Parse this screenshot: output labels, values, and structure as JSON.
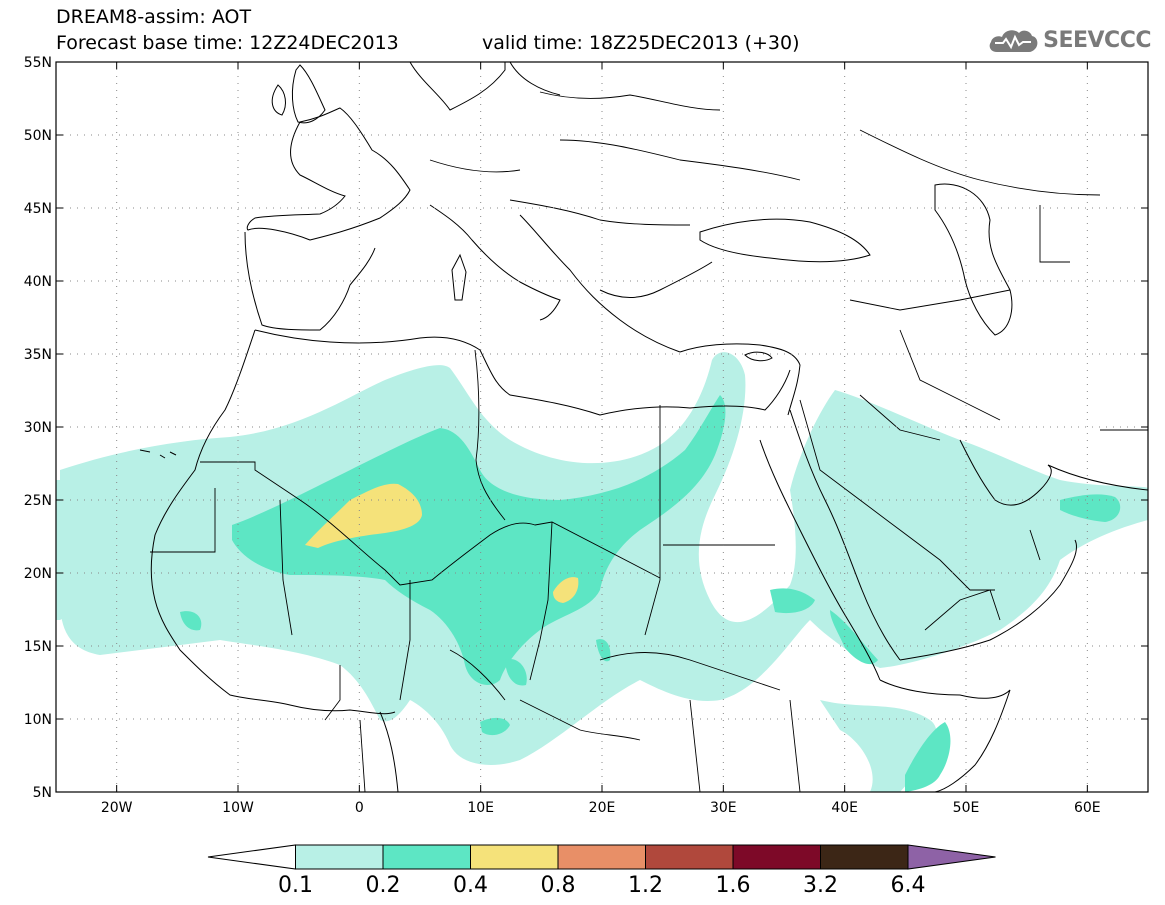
{
  "header": {
    "title_line1": "DREAM8-assim: AOT",
    "title_line2": "Forecast base time: 12Z24DEC2013",
    "valid_time": "valid time: 18Z25DEC2013 (+30)",
    "logo_text": "SEEVCCC",
    "logo_icon": "cloud-icon"
  },
  "map_data": {
    "projection": "lat-lon",
    "lon_range": [
      -25,
      65
    ],
    "lat_range": [
      5,
      55
    ],
    "lat_ticks": [
      "55N",
      "50N",
      "45N",
      "40N",
      "35N",
      "30N",
      "25N",
      "20N",
      "15N",
      "10N",
      "5N"
    ],
    "lon_ticks": [
      "20W",
      "10W",
      "0",
      "10E",
      "20E",
      "30E",
      "40E",
      "50E",
      "60E"
    ],
    "gridlines": true,
    "variable": "AOT",
    "field_colors": {
      "0.1-0.2": "#b8f0e6",
      "0.2-0.4": "#5de6c4",
      "0.4-0.8": "#f5e27a"
    }
  },
  "colorbar": {
    "levels": [
      "0.1",
      "0.2",
      "0.4",
      "0.8",
      "1.2",
      "1.6",
      "3.2",
      "6.4"
    ],
    "colors": [
      "#b8f0e6",
      "#5de6c4",
      "#f5e27a",
      "#e88f67",
      "#b0483c",
      "#7d0928",
      "#3c2616",
      "#8e62a6"
    ],
    "under_color": "#ffffff"
  }
}
